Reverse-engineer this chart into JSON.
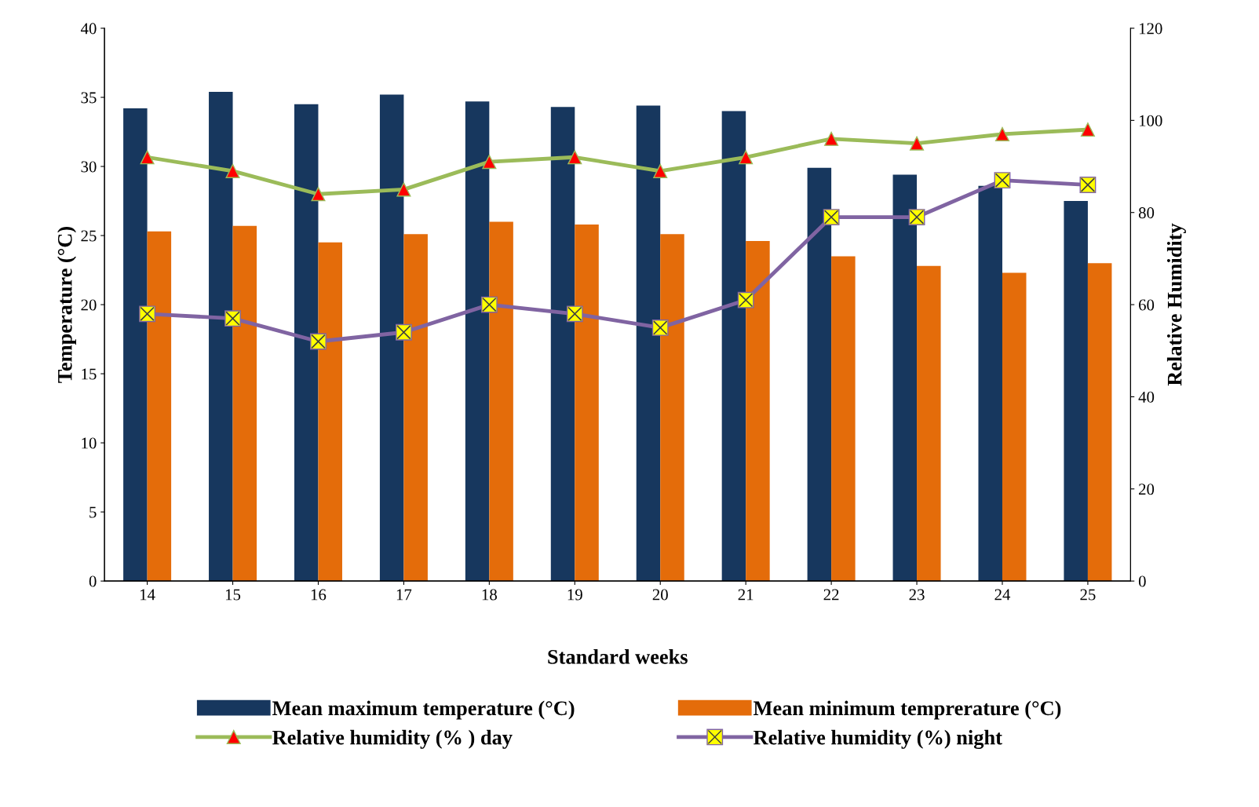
{
  "chart_data": {
    "type": "bar",
    "xlabel": "Standard weeks",
    "ylabel": "Temperature (°C)",
    "y2label": "Relative Humidity",
    "categories": [
      "14",
      "15",
      "16",
      "17",
      "18",
      "19",
      "20",
      "21",
      "22",
      "23",
      "24",
      "25"
    ],
    "ylim": [
      0,
      40
    ],
    "yticks": [
      0,
      5,
      10,
      15,
      20,
      25,
      30,
      35,
      40
    ],
    "y2lim": [
      0,
      120
    ],
    "y2ticks": [
      0,
      20,
      40,
      60,
      80,
      100,
      120
    ],
    "grid": false,
    "legend": "bottom",
    "series": [
      {
        "name": "Mean maximum temperature (°C)",
        "color": "#17375e",
        "values": [
          34.2,
          35.4,
          34.5,
          35.2,
          34.7,
          34.3,
          34.4,
          34.0,
          29.9,
          29.4,
          28.6,
          27.5
        ]
      },
      {
        "name": "Mean minimum temprerature (°C)",
        "color": "#e46c0a",
        "values": [
          25.3,
          25.7,
          24.5,
          25.1,
          26.0,
          25.8,
          25.1,
          24.6,
          23.5,
          22.8,
          22.3,
          23.0
        ]
      },
      {
        "name": "Relative humidity (% ) day",
        "color": "#9bbb59",
        "type": "line",
        "axis": "y2",
        "marker": "triangle",
        "values": [
          92,
          89,
          84,
          85,
          91,
          92,
          89,
          92,
          96,
          95,
          97,
          98
        ]
      },
      {
        "name": "Relative humidity (%) night",
        "color": "#8064a2",
        "type": "line",
        "axis": "y2",
        "marker": "square",
        "values": [
          58,
          57,
          52,
          54,
          60,
          58,
          55,
          61,
          79,
          79,
          87,
          86
        ]
      }
    ]
  }
}
